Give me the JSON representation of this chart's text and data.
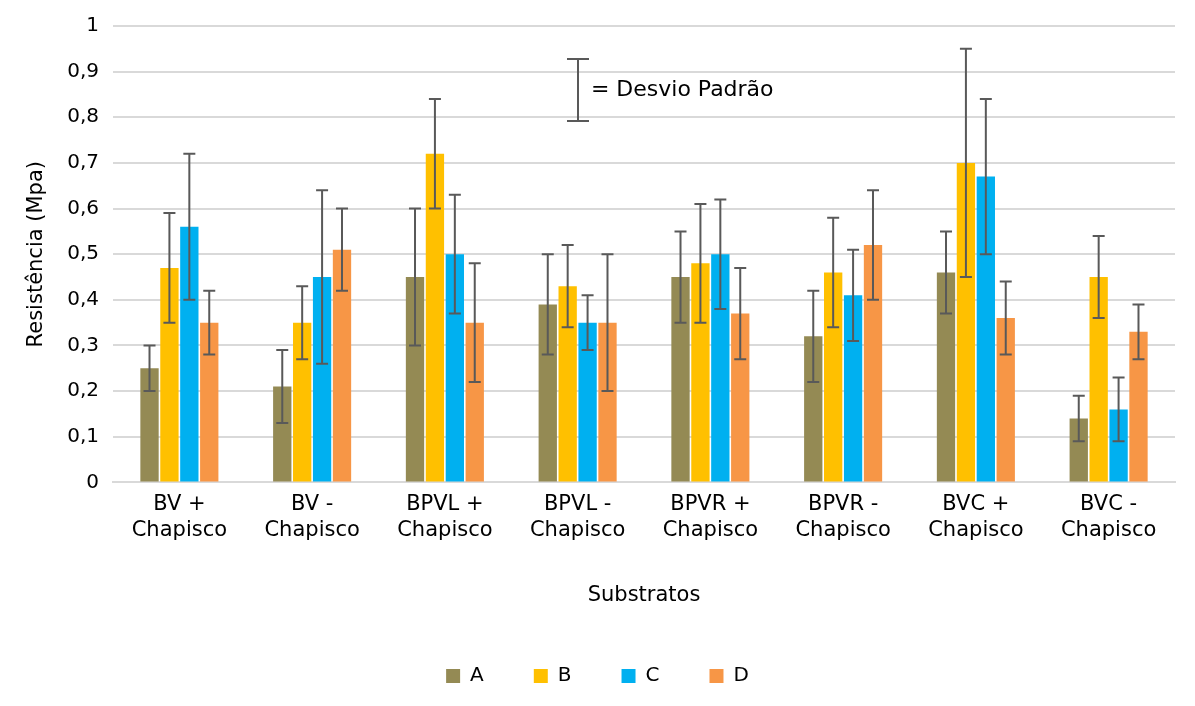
{
  "chart_data": {
    "type": "bar",
    "xlabel": "Substratos",
    "ylabel": "Resistência (Mpa)",
    "categories": [
      "BV + Chapisco",
      "BV - Chapisco",
      "BPVL + Chapisco",
      "BPVL - Chapisco",
      "BPVR + Chapisco",
      "BPVR - Chapisco",
      "BVC + Chapisco",
      "BVC - Chapisco"
    ],
    "series": [
      {
        "name": "A",
        "color": "#948a54",
        "values": [
          0.25,
          0.21,
          0.45,
          0.39,
          0.45,
          0.32,
          0.46,
          0.14
        ],
        "errors": [
          [
            0.2,
            0.3
          ],
          [
            0.13,
            0.29
          ],
          [
            0.3,
            0.6
          ],
          [
            0.28,
            0.5
          ],
          [
            0.35,
            0.55
          ],
          [
            0.22,
            0.42
          ],
          [
            0.37,
            0.55
          ],
          [
            0.09,
            0.19
          ]
        ]
      },
      {
        "name": "B",
        "color": "#ffc000",
        "values": [
          0.47,
          0.35,
          0.72,
          0.43,
          0.48,
          0.46,
          0.7,
          0.45
        ],
        "errors": [
          [
            0.35,
            0.59
          ],
          [
            0.27,
            0.43
          ],
          [
            0.6,
            0.84
          ],
          [
            0.34,
            0.52
          ],
          [
            0.35,
            0.61
          ],
          [
            0.34,
            0.58
          ],
          [
            0.45,
            0.95
          ],
          [
            0.36,
            0.54
          ]
        ]
      },
      {
        "name": "C",
        "color": "#00b0f0",
        "values": [
          0.56,
          0.45,
          0.5,
          0.35,
          0.5,
          0.41,
          0.67,
          0.16
        ],
        "errors": [
          [
            0.4,
            0.72
          ],
          [
            0.26,
            0.64
          ],
          [
            0.37,
            0.63
          ],
          [
            0.29,
            0.41
          ],
          [
            0.38,
            0.62
          ],
          [
            0.31,
            0.51
          ],
          [
            0.5,
            0.84
          ],
          [
            0.09,
            0.23
          ]
        ]
      },
      {
        "name": "D",
        "color": "#f79646",
        "values": [
          0.35,
          0.51,
          0.35,
          0.35,
          0.37,
          0.52,
          0.36,
          0.33
        ],
        "errors": [
          [
            0.28,
            0.42
          ],
          [
            0.42,
            0.6
          ],
          [
            0.22,
            0.48
          ],
          [
            0.2,
            0.5
          ],
          [
            0.27,
            0.47
          ],
          [
            0.4,
            0.64
          ],
          [
            0.28,
            0.44
          ],
          [
            0.27,
            0.39
          ]
        ]
      }
    ],
    "ylim": [
      0,
      1
    ],
    "yticks": [
      0,
      {
        "value": 0.1,
        "label": "0,1"
      },
      {
        "value": 0.2,
        "label": "0,2"
      },
      {
        "value": 0.3,
        "label": "0,3"
      },
      {
        "value": 0.4,
        "label": "0,4"
      },
      {
        "value": 0.5,
        "label": "0,5"
      },
      {
        "value": 0.6,
        "label": "0,6"
      },
      {
        "value": 0.7,
        "label": "0,7"
      },
      {
        "value": 0.8,
        "label": "0,8"
      },
      {
        "value": 0.9,
        "label": "0,9"
      },
      1
    ],
    "grid": "y",
    "legend": "bottom",
    "annotations": [
      "= Desvio Padrão"
    ]
  }
}
